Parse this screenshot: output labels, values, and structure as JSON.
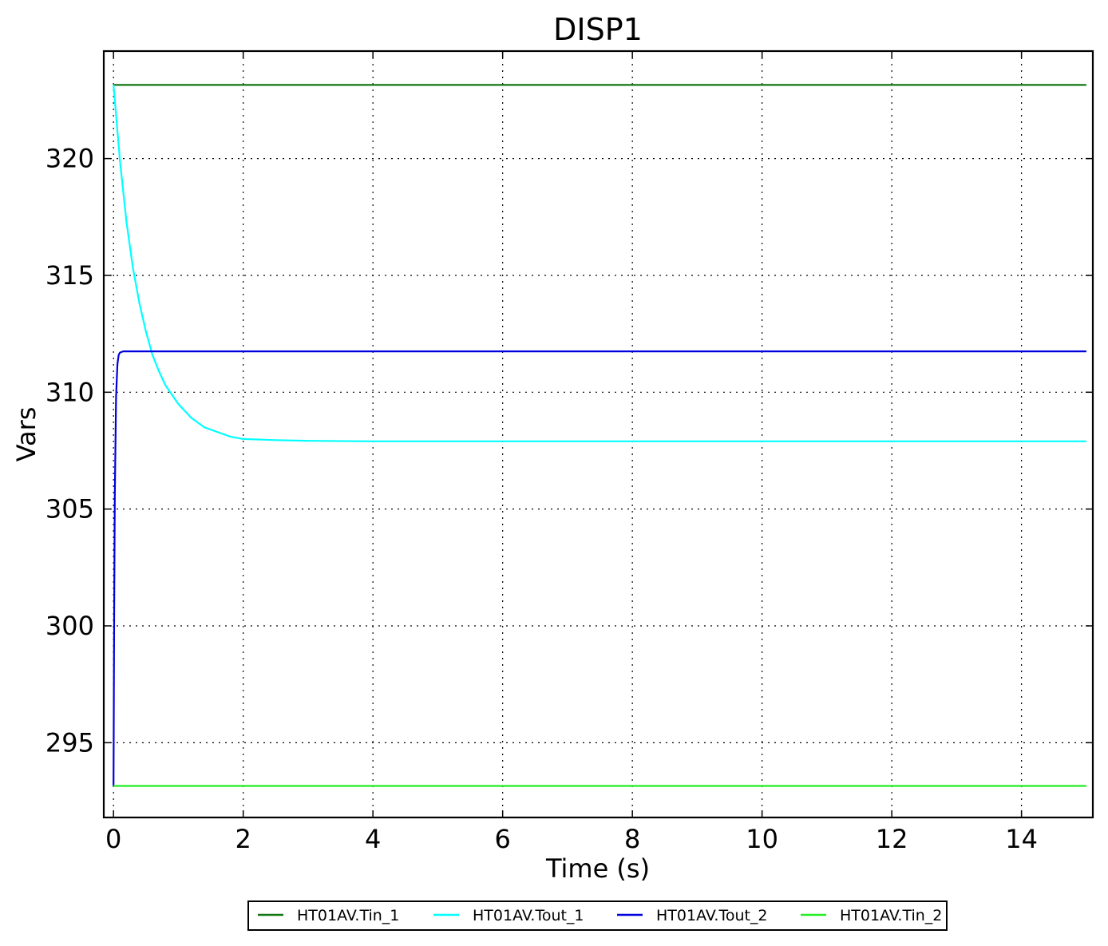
{
  "chart_data": {
    "type": "line",
    "title": "DISP1",
    "xlabel": "Time (s)",
    "ylabel": "Vars",
    "xlim": [
      -0.15,
      15.1
    ],
    "ylim": [
      291.8,
      324.6
    ],
    "xticks": [
      0,
      2,
      4,
      6,
      8,
      10,
      12,
      14
    ],
    "yticks": [
      295,
      300,
      305,
      310,
      315,
      320
    ],
    "xtick_labels": [
      "0",
      "2",
      "4",
      "6",
      "8",
      "10",
      "12",
      "14"
    ],
    "ytick_labels": [
      "295",
      "300",
      "305",
      "310",
      "315",
      "320"
    ],
    "grid": true,
    "legend_position": "bottom-center",
    "series": [
      {
        "name": "HT01AV.Tin_1",
        "color": "#117711",
        "x": [
          0,
          15
        ],
        "y": [
          323.15,
          323.15
        ]
      },
      {
        "name": "HT01AV.Tout_1",
        "color": "#00ffff",
        "x": [
          0,
          0.1,
          0.2,
          0.3,
          0.4,
          0.5,
          0.6,
          0.7,
          0.8,
          1.0,
          1.2,
          1.4,
          1.6,
          1.8,
          2.0,
          2.5,
          3.0,
          4.0,
          6.0,
          10.0,
          15.0
        ],
        "y": [
          323.15,
          319.9,
          317.3,
          315.3,
          313.8,
          312.6,
          311.6,
          310.9,
          310.3,
          309.5,
          308.9,
          308.5,
          308.3,
          308.1,
          308.0,
          307.95,
          307.92,
          307.9,
          307.9,
          307.9,
          307.9
        ]
      },
      {
        "name": "HT01AV.Tout_2",
        "color": "#0000dd",
        "x": [
          0,
          0.01,
          0.02,
          0.04,
          0.06,
          0.08,
          0.1,
          0.15,
          15.0
        ],
        "y": [
          293.15,
          300.5,
          305.5,
          309.8,
          311.2,
          311.6,
          311.7,
          311.75,
          311.75
        ]
      },
      {
        "name": "HT01AV.Tin_2",
        "color": "#22ee22",
        "x": [
          0,
          15
        ],
        "y": [
          293.15,
          293.15
        ]
      }
    ]
  }
}
